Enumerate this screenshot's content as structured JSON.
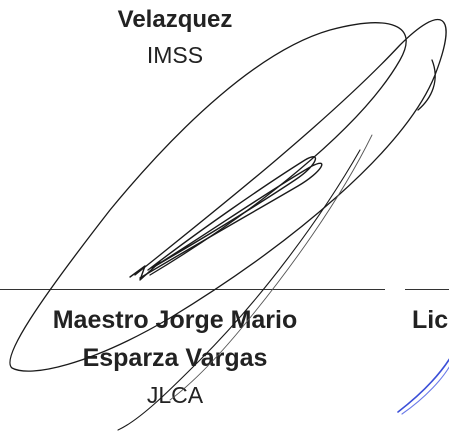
{
  "top_signatory": {
    "name": "Velazquez",
    "institution": "IMSS"
  },
  "bottom_signatory": {
    "name_line1": "Maestro Jorge  Mario",
    "name_line2": "Esparza Vargas",
    "institution": "JLCA"
  },
  "right_partial": {
    "text": "Lic"
  },
  "colors": {
    "text": "#222222",
    "signature_ink": "#1a1a1a",
    "blue_ink": "#3b4fd8"
  }
}
